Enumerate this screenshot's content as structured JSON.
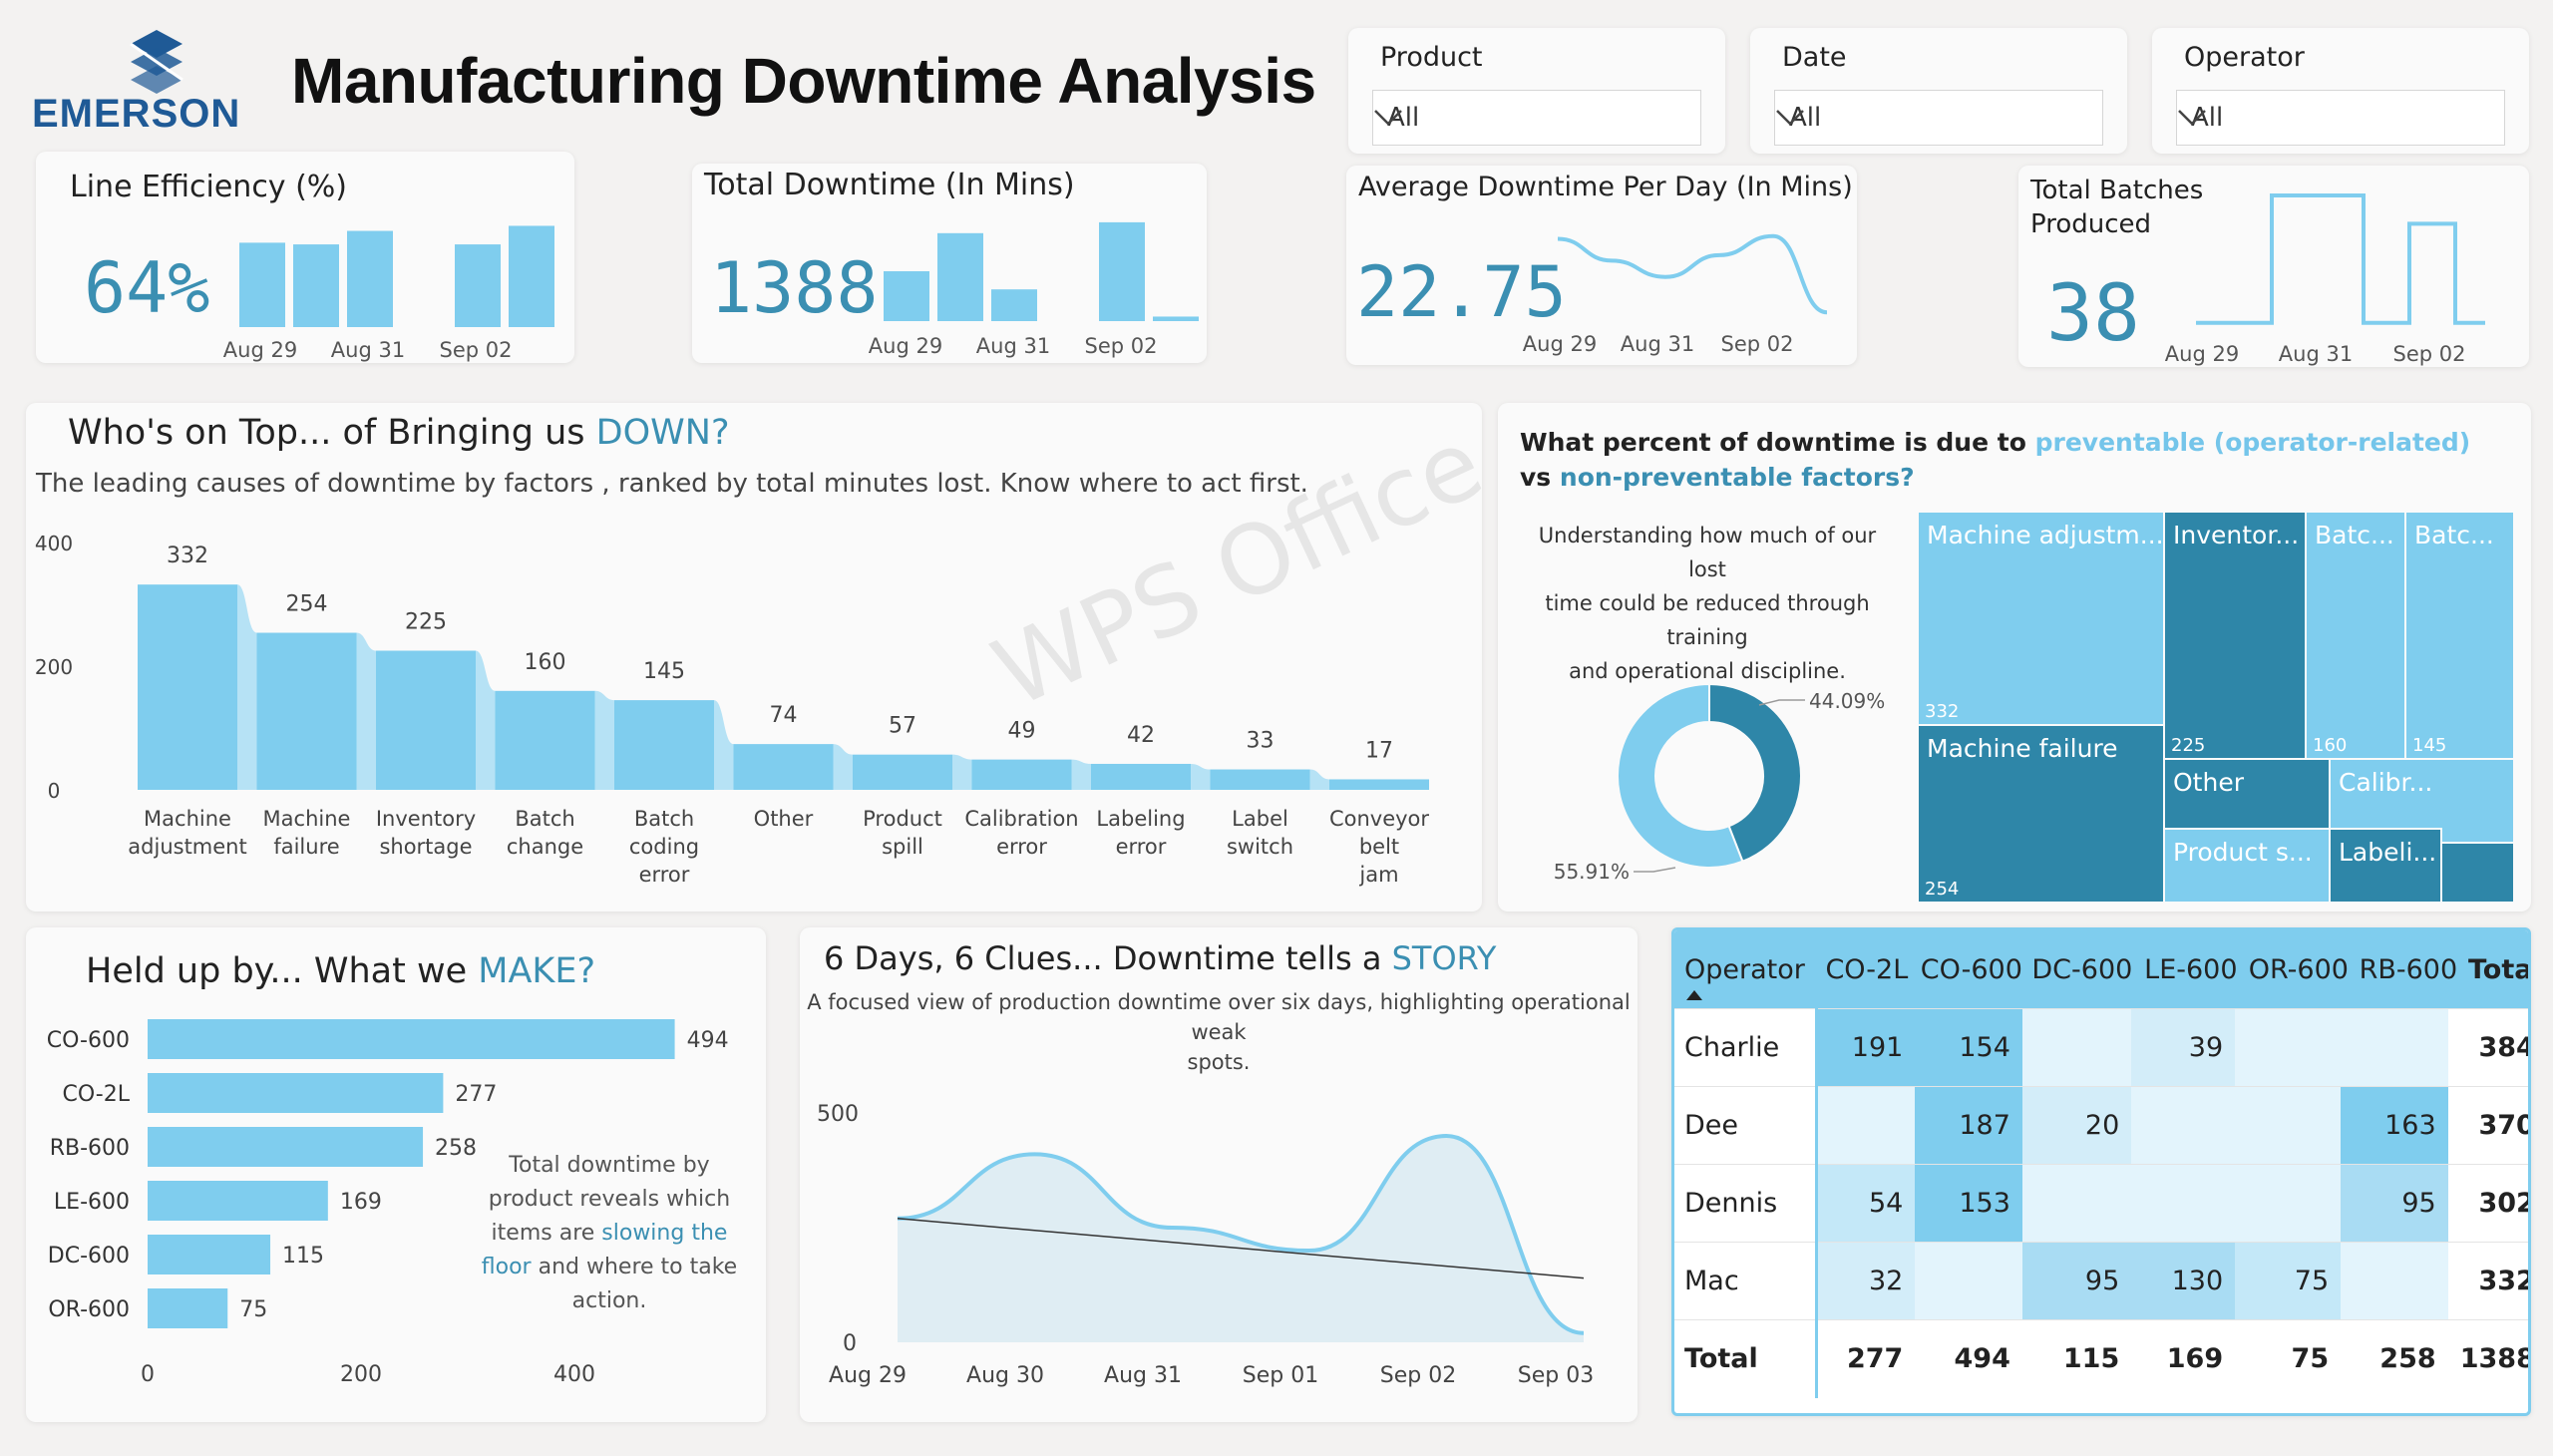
{
  "header": {
    "logo_text": "EMERSON",
    "title": "Manufacturing Downtime Analysis"
  },
  "filters": [
    {
      "label": "Product",
      "value": "All"
    },
    {
      "label": "Date",
      "value": "All"
    },
    {
      "label": "Operator",
      "value": "All"
    }
  ],
  "kpis": {
    "line_efficiency": {
      "title": "Line Efficiency (%)",
      "value": "64%",
      "axis_labels": [
        "Aug 29",
        "Aug 31",
        "Sep 02"
      ]
    },
    "total_downtime": {
      "title": "Total Downtime (In Mins)",
      "value": "1388",
      "axis_labels": [
        "Aug 29",
        "Aug 31",
        "Sep 02"
      ]
    },
    "avg_downtime": {
      "title": "Average Downtime Per Day (In Mins)",
      "value": "22.75",
      "axis_labels": [
        "Aug 29",
        "Aug 31",
        "Sep 02"
      ]
    },
    "total_batches": {
      "title_line1": "Total Batches",
      "title_line2": "Produced",
      "value": "38",
      "axis_labels": [
        "Aug 29",
        "Aug 31",
        "Sep 02"
      ]
    }
  },
  "causes": {
    "title_prefix": "Who's on Top... of Bringing us ",
    "title_highlight": "DOWN?",
    "subtitle": "The leading causes of downtime by factors , ranked by total minutes lost. Know where to act first."
  },
  "preventable": {
    "title_line1_prefix": "What percent of downtime is due to ",
    "title_line1_highlight": "preventable (operator-related)",
    "title_line2_prefix": "vs ",
    "title_line2_highlight": "non-preventable factors?",
    "description_lines": [
      "Understanding how much of our lost",
      "time could be reduced through training",
      "and operational discipline."
    ],
    "donut_label_dark": "44.09%",
    "donut_label_light": "55.91%",
    "dark_color": "#2e86a8",
    "light_color": "#7fcdee"
  },
  "treemap": [
    {
      "label": "Machine adjustm...",
      "value": "332",
      "color": "#7fcdee"
    },
    {
      "label": "Inventor...",
      "value": "225",
      "color": "#2e86a8"
    },
    {
      "label": "Batc...",
      "value": "160",
      "color": "#7fcdee"
    },
    {
      "label": "Batc...",
      "value": "145",
      "color": "#7fcdee"
    },
    {
      "label": "Machine failure",
      "value": "254",
      "color": "#2e86a8"
    },
    {
      "label": "Other",
      "value": "",
      "color": "#2e86a8"
    },
    {
      "label": "Calibr...",
      "value": "",
      "color": "#7fcdee"
    },
    {
      "label": "Product s...",
      "value": "",
      "color": "#7fcdee"
    },
    {
      "label": "Labeli...",
      "value": "",
      "color": "#2e86a8"
    },
    {
      "label": "",
      "value": "",
      "color": "#7fcdee"
    },
    {
      "label": "",
      "value": "",
      "color": "#2e86a8"
    }
  ],
  "product": {
    "title_prefix": "Held up by... What we ",
    "title_highlight": "MAKE?",
    "note_line1": "Total downtime by",
    "note_line2": "product reveals which",
    "note_line3_prefix": "items are ",
    "note_line3_highlight": "slowing the",
    "note_line4_highlight": "floor",
    "note_line4_suffix": " and where to take",
    "note_line5": "action."
  },
  "story": {
    "title_prefix": "6 Days,  6 Clues... Downtime tells a ",
    "title_highlight": "STORY",
    "subtitle_line1": "A focused view of production downtime over six days, highlighting operational weak",
    "subtitle_line2": "spots."
  },
  "matrix": {
    "row_header": "Operator",
    "columns": [
      "CO-2L",
      "CO-600",
      "DC-600",
      "LE-600",
      "OR-600",
      "RB-600",
      "Total"
    ],
    "rows": [
      {
        "name": "Charlie",
        "cells": [
          "191",
          "154",
          "",
          "39",
          "",
          "",
          "384"
        ]
      },
      {
        "name": "Dee",
        "cells": [
          "",
          "187",
          "20",
          "",
          "",
          "163",
          "370"
        ]
      },
      {
        "name": "Dennis",
        "cells": [
          "54",
          "153",
          "",
          "",
          "",
          "95",
          "302"
        ]
      },
      {
        "name": "Mac",
        "cells": [
          "32",
          "",
          "95",
          "130",
          "75",
          "",
          "332"
        ]
      }
    ],
    "total_label": "Total",
    "totals": [
      "277",
      "494",
      "115",
      "169",
      "75",
      "258",
      "1388"
    ]
  },
  "watermark": "WPS Office",
  "chart_data": [
    {
      "type": "bar",
      "title": "Line Efficiency (%)",
      "categories": [
        "Aug 29",
        "Aug 30",
        "Aug 31",
        "Sep 01",
        "Sep 02",
        "Sep 03"
      ],
      "values": [
        50,
        49,
        57,
        null,
        49,
        60
      ],
      "x_tick_labels": [
        "Aug 29",
        "Aug 31",
        "Sep 02"
      ]
    },
    {
      "type": "bar",
      "title": "Total Downtime (In Mins)",
      "categories": [
        "Aug 29",
        "Aug 30",
        "Aug 31",
        "Sep 01",
        "Sep 02",
        "Sep 03"
      ],
      "values": [
        55,
        97,
        35,
        null,
        109,
        5
      ],
      "x_tick_labels": [
        "Aug 29",
        "Aug 31",
        "Sep 02"
      ]
    },
    {
      "type": "line",
      "title": "Average Downtime Per Day (In Mins)",
      "x": [
        "Aug 29",
        "Aug 30",
        "Aug 31",
        "Sep 01",
        "Sep 02",
        "Sep 03"
      ],
      "values": [
        28,
        20,
        14,
        22,
        29,
        1
      ],
      "x_tick_labels": [
        "Aug 29",
        "Aug 31",
        "Sep 02"
      ]
    },
    {
      "type": "line",
      "title": "Total Batches Produced",
      "x": [
        "Aug 29",
        "Aug 30",
        "Aug 31",
        "Sep 01",
        "Sep 02",
        "Sep 03"
      ],
      "values": [
        1,
        10,
        10,
        1,
        8,
        1
      ],
      "x_tick_labels": [
        "Aug 29",
        "Aug 31",
        "Sep 02"
      ]
    },
    {
      "type": "bar",
      "title": "Who's on Top... of Bringing us DOWN?",
      "categories": [
        "Machine adjustment",
        "Machine failure",
        "Inventory shortage",
        "Batch change",
        "Batch coding error",
        "Other",
        "Product spill",
        "Calibration error",
        "Labeling error",
        "Label switch",
        "Conveyor belt jam"
      ],
      "values": [
        332,
        254,
        225,
        160,
        145,
        74,
        57,
        49,
        42,
        33,
        17
      ],
      "data_labels": [
        "332",
        "254",
        "225",
        "160",
        "145",
        "74",
        "57",
        "49",
        "42",
        "33",
        "17"
      ],
      "y_tick_labels": [
        "400",
        "200",
        "0"
      ],
      "ylim": [
        0,
        400
      ]
    },
    {
      "type": "pie",
      "title": "What percent of downtime is due to preventable (operator-related) vs non-preventable factors?",
      "values": [
        44.09,
        55.91
      ],
      "data_labels": [
        "44.09%",
        "55.91%"
      ]
    },
    {
      "type": "bar",
      "orientation": "horizontal",
      "title": "Held up by... What we MAKE?",
      "categories": [
        "CO-600",
        "CO-2L",
        "RB-600",
        "LE-600",
        "DC-600",
        "OR-600"
      ],
      "values": [
        494,
        277,
        258,
        169,
        115,
        75
      ],
      "x_tick_labels": [
        "0",
        "200",
        "400"
      ],
      "xlim": [
        0,
        500
      ]
    },
    {
      "type": "area",
      "title": "6 Days,  6 Clues... Downtime tells a STORY",
      "x": [
        "Aug 29",
        "Aug 30",
        "Aug 31",
        "Sep 01",
        "Sep 02",
        "Sep 03"
      ],
      "values": [
        270,
        410,
        250,
        200,
        450,
        20
      ],
      "trend": [
        270,
        140
      ],
      "y_tick_labels": [
        "500",
        "0"
      ],
      "ylim": [
        0,
        500
      ]
    }
  ]
}
